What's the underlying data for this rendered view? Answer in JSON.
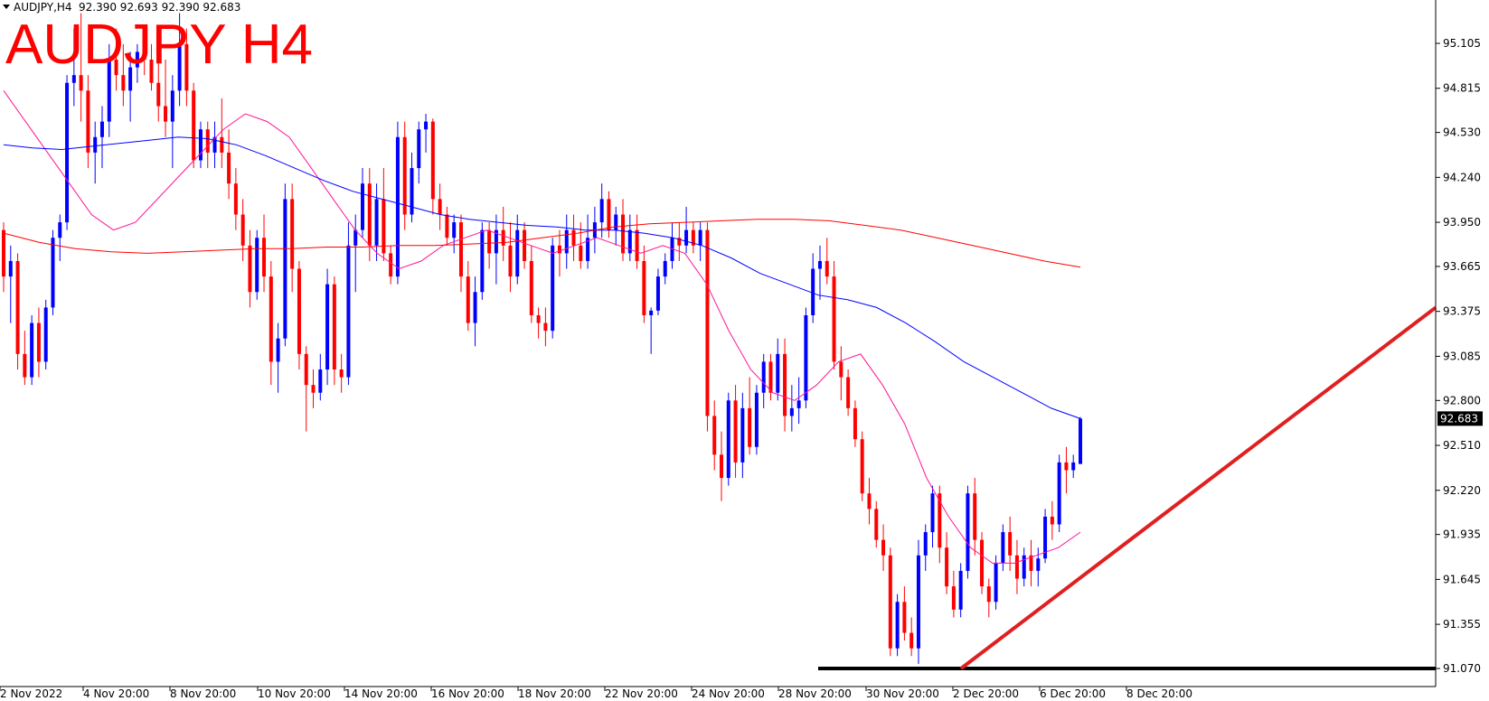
{
  "header": {
    "symbol": "AUDJPY,H4",
    "ohlc": "92.390 92.693 92.390 92.683",
    "overlay_title": "AUDJPY H4"
  },
  "colors": {
    "bull": "#0000ff",
    "bear": "#ff0000",
    "ma_fast": "#ff1493",
    "ma_mid": "#0000ff",
    "ma_slow": "#ff0000",
    "trendline": "#e02020",
    "support": "#000000",
    "price_tag_bg": "#000000"
  },
  "chart_data": {
    "type": "candlestick",
    "price_axis": {
      "ticks": [
        "95.105",
        "94.815",
        "94.530",
        "94.240",
        "93.950",
        "93.665",
        "93.375",
        "93.085",
        "92.800",
        "92.510",
        "92.220",
        "91.935",
        "91.645",
        "91.355",
        "91.070"
      ],
      "range": [
        91.0,
        95.3
      ]
    },
    "time_axis": {
      "ticks": [
        "2 Nov 2022",
        "4 Nov 20:00",
        "8 Nov 20:00",
        "10 Nov 20:00",
        "14 Nov 20:00",
        "16 Nov 20:00",
        "18 Nov 20:00",
        "22 Nov 20:00",
        "24 Nov 20:00",
        "28 Nov 20:00",
        "30 Nov 20:00",
        "2 Dec 20:00",
        "6 Dec 20:00",
        "8 Dec 20:00"
      ]
    },
    "last_price": "92.683",
    "candles": [
      [
        93.9,
        93.95,
        93.5,
        93.6
      ],
      [
        93.6,
        93.8,
        93.3,
        93.7
      ],
      [
        93.7,
        93.75,
        93.0,
        93.1
      ],
      [
        93.1,
        93.25,
        92.9,
        92.95
      ],
      [
        92.95,
        93.35,
        92.9,
        93.3
      ],
      [
        93.3,
        93.4,
        92.95,
        93.05
      ],
      [
        93.05,
        93.45,
        93.0,
        93.4
      ],
      [
        93.4,
        93.9,
        93.35,
        93.85
      ],
      [
        93.85,
        94.0,
        93.7,
        93.95
      ],
      [
        93.95,
        94.9,
        93.9,
        94.85
      ],
      [
        94.85,
        95.2,
        94.7,
        94.9
      ],
      [
        94.9,
        95.3,
        94.6,
        94.8
      ],
      [
        94.8,
        94.9,
        94.3,
        94.4
      ],
      [
        94.4,
        94.6,
        94.2,
        94.5
      ],
      [
        94.5,
        94.7,
        94.3,
        94.6
      ],
      [
        94.6,
        95.1,
        94.5,
        95.0
      ],
      [
        95.0,
        95.2,
        94.8,
        94.9
      ],
      [
        94.9,
        95.1,
        94.7,
        94.8
      ],
      [
        94.8,
        95.05,
        94.6,
        94.95
      ],
      [
        94.95,
        95.1,
        94.85,
        95.05
      ],
      [
        95.05,
        95.2,
        94.9,
        95.0
      ],
      [
        95.0,
        95.1,
        94.8,
        94.85
      ],
      [
        94.85,
        95.0,
        94.6,
        94.7
      ],
      [
        94.7,
        95.0,
        94.5,
        94.6
      ],
      [
        94.6,
        94.9,
        94.3,
        94.8
      ],
      [
        94.8,
        95.3,
        94.7,
        95.1
      ],
      [
        95.1,
        95.2,
        94.7,
        94.8
      ],
      [
        94.8,
        94.85,
        94.3,
        94.35
      ],
      [
        94.35,
        94.6,
        94.3,
        94.55
      ],
      [
        94.55,
        94.6,
        94.3,
        94.4
      ],
      [
        94.4,
        94.6,
        94.3,
        94.5
      ],
      [
        94.5,
        94.75,
        94.3,
        94.4
      ],
      [
        94.4,
        94.55,
        94.1,
        94.2
      ],
      [
        94.2,
        94.3,
        93.9,
        94.0
      ],
      [
        94.0,
        94.1,
        93.7,
        93.8
      ],
      [
        93.8,
        93.9,
        93.4,
        93.5
      ],
      [
        93.5,
        93.9,
        93.45,
        93.85
      ],
      [
        93.85,
        94.0,
        93.5,
        93.6
      ],
      [
        93.6,
        93.7,
        92.9,
        93.05
      ],
      [
        93.05,
        93.3,
        92.85,
        93.2
      ],
      [
        93.2,
        94.2,
        93.15,
        94.1
      ],
      [
        94.1,
        94.2,
        93.5,
        93.65
      ],
      [
        93.65,
        93.7,
        93.0,
        93.1
      ],
      [
        93.1,
        93.15,
        92.6,
        92.9
      ],
      [
        92.9,
        93.0,
        92.75,
        92.85
      ],
      [
        92.85,
        93.1,
        92.8,
        93.0
      ],
      [
        93.0,
        93.65,
        92.9,
        93.55
      ],
      [
        93.55,
        93.6,
        92.9,
        93.0
      ],
      [
        93.0,
        93.1,
        92.85,
        92.95
      ],
      [
        92.95,
        93.95,
        92.9,
        93.8
      ],
      [
        93.8,
        94.0,
        93.5,
        93.9
      ],
      [
        93.9,
        94.3,
        93.85,
        94.2
      ],
      [
        94.2,
        94.3,
        93.7,
        93.8
      ],
      [
        93.8,
        94.2,
        93.7,
        94.1
      ],
      [
        94.1,
        94.3,
        93.7,
        93.75
      ],
      [
        93.75,
        93.8,
        93.55,
        93.6
      ],
      [
        93.6,
        94.6,
        93.55,
        94.5
      ],
      [
        94.5,
        94.6,
        93.9,
        94.0
      ],
      [
        94.0,
        94.4,
        93.95,
        94.3
      ],
      [
        94.3,
        94.6,
        94.2,
        94.55
      ],
      [
        94.55,
        94.65,
        94.4,
        94.6
      ],
      [
        94.6,
        94.62,
        94.0,
        94.1
      ],
      [
        94.1,
        94.2,
        93.9,
        94.0
      ],
      [
        94.0,
        94.05,
        93.8,
        93.85
      ],
      [
        93.85,
        94.0,
        93.75,
        93.95
      ],
      [
        93.95,
        94.0,
        93.5,
        93.6
      ],
      [
        93.6,
        93.7,
        93.25,
        93.3
      ],
      [
        93.3,
        93.6,
        93.15,
        93.5
      ],
      [
        93.5,
        93.95,
        93.45,
        93.9
      ],
      [
        93.9,
        93.95,
        93.65,
        93.75
      ],
      [
        93.75,
        94.0,
        93.55,
        93.9
      ],
      [
        93.9,
        94.05,
        93.7,
        93.8
      ],
      [
        93.8,
        93.95,
        93.5,
        93.6
      ],
      [
        93.6,
        94.0,
        93.55,
        93.9
      ],
      [
        93.9,
        93.95,
        93.65,
        93.7
      ],
      [
        93.7,
        93.8,
        93.3,
        93.35
      ],
      [
        93.35,
        93.4,
        93.2,
        93.3
      ],
      [
        93.3,
        93.4,
        93.15,
        93.25
      ],
      [
        93.25,
        93.85,
        93.2,
        93.8
      ],
      [
        93.8,
        93.9,
        93.6,
        93.75
      ],
      [
        93.75,
        94.0,
        93.65,
        93.9
      ],
      [
        93.9,
        94.0,
        93.7,
        93.8
      ],
      [
        93.8,
        93.95,
        93.65,
        93.7
      ],
      [
        93.7,
        94.0,
        93.65,
        93.85
      ],
      [
        93.85,
        94.05,
        93.75,
        93.95
      ],
      [
        93.95,
        94.2,
        93.85,
        94.1
      ],
      [
        94.1,
        94.15,
        93.85,
        93.9
      ],
      [
        93.9,
        94.05,
        93.8,
        94.0
      ],
      [
        94.0,
        94.1,
        93.7,
        93.75
      ],
      [
        93.75,
        94.0,
        93.7,
        93.9
      ],
      [
        93.9,
        94.0,
        93.65,
        93.7
      ],
      [
        93.7,
        93.8,
        93.3,
        93.35
      ],
      [
        93.35,
        93.4,
        93.1,
        93.38
      ],
      [
        93.38,
        93.65,
        93.35,
        93.6
      ],
      [
        93.6,
        93.75,
        93.55,
        93.7
      ],
      [
        93.7,
        93.95,
        93.65,
        93.85
      ],
      [
        93.85,
        93.95,
        93.7,
        93.8
      ],
      [
        93.8,
        94.05,
        93.75,
        93.9
      ],
      [
        93.9,
        93.95,
        93.75,
        93.8
      ],
      [
        93.8,
        93.95,
        93.7,
        93.9
      ],
      [
        93.9,
        93.95,
        92.6,
        92.7
      ],
      [
        92.7,
        92.8,
        92.35,
        92.45
      ],
      [
        92.45,
        92.6,
        92.15,
        92.3
      ],
      [
        92.3,
        92.85,
        92.25,
        92.8
      ],
      [
        92.8,
        92.9,
        92.3,
        92.4
      ],
      [
        92.4,
        92.85,
        92.3,
        92.75
      ],
      [
        92.75,
        92.95,
        92.45,
        92.5
      ],
      [
        92.5,
        92.9,
        92.45,
        92.85
      ],
      [
        92.85,
        93.1,
        92.75,
        93.05
      ],
      [
        93.05,
        93.1,
        92.8,
        92.85
      ],
      [
        92.85,
        93.2,
        92.8,
        93.1
      ],
      [
        93.1,
        93.2,
        92.6,
        92.7
      ],
      [
        92.7,
        92.9,
        92.6,
        92.75
      ],
      [
        92.75,
        92.95,
        92.65,
        92.8
      ],
      [
        92.8,
        93.4,
        92.75,
        93.35
      ],
      [
        93.35,
        93.75,
        93.3,
        93.65
      ],
      [
        93.65,
        93.8,
        93.45,
        93.7
      ],
      [
        93.7,
        93.85,
        93.55,
        93.6
      ],
      [
        93.6,
        93.7,
        93.0,
        93.05
      ],
      [
        93.05,
        93.15,
        92.8,
        92.95
      ],
      [
        92.95,
        93.0,
        92.7,
        92.75
      ],
      [
        92.75,
        92.8,
        92.5,
        92.55
      ],
      [
        92.55,
        92.6,
        92.15,
        92.2
      ],
      [
        92.2,
        92.3,
        92.0,
        92.1
      ],
      [
        92.1,
        92.15,
        91.85,
        91.9
      ],
      [
        91.9,
        92.0,
        91.7,
        91.8
      ],
      [
        91.8,
        91.85,
        91.15,
        91.2
      ],
      [
        91.2,
        91.55,
        91.15,
        91.5
      ],
      [
        91.5,
        91.6,
        91.25,
        91.3
      ],
      [
        91.3,
        91.4,
        91.15,
        91.2
      ],
      [
        91.2,
        91.9,
        91.1,
        91.8
      ],
      [
        91.8,
        92.0,
        91.7,
        91.95
      ],
      [
        91.95,
        92.25,
        91.85,
        92.2
      ],
      [
        92.2,
        92.25,
        91.75,
        91.85
      ],
      [
        91.85,
        91.95,
        91.55,
        91.6
      ],
      [
        91.6,
        91.7,
        91.4,
        91.45
      ],
      [
        91.45,
        91.75,
        91.4,
        91.7
      ],
      [
        91.7,
        92.25,
        91.65,
        92.2
      ],
      [
        92.2,
        92.3,
        91.8,
        91.9
      ],
      [
        91.9,
        91.95,
        91.55,
        91.6
      ],
      [
        91.6,
        91.65,
        91.4,
        91.5
      ],
      [
        91.5,
        91.8,
        91.45,
        91.75
      ],
      [
        91.75,
        92.0,
        91.7,
        91.95
      ],
      [
        91.95,
        92.05,
        91.7,
        91.8
      ],
      [
        91.8,
        91.9,
        91.55,
        91.65
      ],
      [
        91.65,
        91.85,
        91.6,
        91.8
      ],
      [
        91.8,
        91.9,
        91.6,
        91.7
      ],
      [
        91.7,
        91.85,
        91.6,
        91.78
      ],
      [
        91.78,
        92.1,
        91.75,
        92.05
      ],
      [
        92.05,
        92.15,
        91.9,
        92.0
      ],
      [
        92.0,
        92.45,
        91.95,
        92.4
      ],
      [
        92.4,
        92.5,
        92.2,
        92.35
      ],
      [
        92.35,
        92.45,
        92.3,
        92.4
      ],
      [
        92.39,
        92.693,
        92.39,
        92.683
      ]
    ],
    "moving_averages": [
      {
        "period_role": "fast",
        "values": [
          94.8,
          94.6,
          94.4,
          94.2,
          94.0,
          93.9,
          93.95,
          94.1,
          94.25,
          94.4,
          94.55,
          94.65,
          94.6,
          94.5,
          94.3,
          94.1,
          93.9,
          93.75,
          93.65,
          93.7,
          93.8,
          93.85,
          93.9,
          93.85,
          93.8,
          93.75,
          93.8,
          93.85,
          93.8,
          93.75,
          93.8,
          93.75,
          93.55,
          93.25,
          93.0,
          92.85,
          92.8,
          92.9,
          93.05,
          93.1,
          92.9,
          92.65,
          92.3,
          92.05,
          91.85,
          91.75,
          91.75,
          91.8,
          91.85,
          91.95
        ]
      },
      {
        "period_role": "mid",
        "values": [
          94.45,
          94.43,
          94.42,
          94.44,
          94.46,
          94.48,
          94.5,
          94.49,
          94.45,
          94.38,
          94.3,
          94.22,
          94.15,
          94.1,
          94.05,
          94.0,
          93.97,
          93.95,
          93.93,
          93.92,
          93.9,
          93.9,
          93.88,
          93.85,
          93.8,
          93.72,
          93.62,
          93.55,
          93.48,
          93.45,
          93.4,
          93.3,
          93.18,
          93.05,
          92.95,
          92.85,
          92.75,
          92.683
        ]
      },
      {
        "period_role": "slow",
        "values": [
          93.88,
          93.82,
          93.78,
          93.76,
          93.75,
          93.76,
          93.77,
          93.78,
          93.78,
          93.79,
          93.79,
          93.8,
          93.8,
          93.81,
          93.82,
          93.85,
          93.88,
          93.92,
          93.94,
          93.95,
          93.96,
          93.97,
          93.97,
          93.96,
          93.93,
          93.9,
          93.85,
          93.8,
          93.75,
          93.7,
          93.66
        ]
      }
    ],
    "trendline": {
      "from": [
        91.07,
        "2 Dec 20:00"
      ],
      "to": [
        93.4,
        "end"
      ]
    },
    "support_line": 91.07
  }
}
